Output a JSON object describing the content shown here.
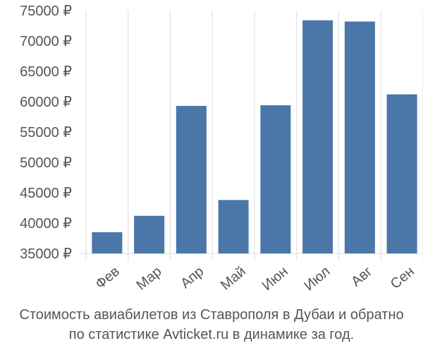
{
  "caption": {
    "line1": "Стоимость авиабилетов из Ставрополя в Дубаи и обратно",
    "line2": "по статистике Avticket.ru в динамике за год."
  },
  "chart_data": {
    "type": "bar",
    "categories": [
      "Фев",
      "Мар",
      "Апр",
      "Май",
      "Июн",
      "Июл",
      "Авг",
      "Сен"
    ],
    "values": [
      38500,
      41200,
      59300,
      43800,
      59400,
      73400,
      73200,
      61200
    ],
    "ylim": [
      35000,
      75000
    ],
    "yticks": [
      35000,
      40000,
      45000,
      50000,
      55000,
      60000,
      65000,
      70000,
      75000
    ],
    "ytick_labels": [
      "35000 ₽",
      "40000 ₽",
      "45000 ₽",
      "50000 ₽",
      "55000 ₽",
      "60000 ₽",
      "65000 ₽",
      "70000 ₽",
      "75000 ₽"
    ],
    "grid": "vertical",
    "bar_color": "#4a76a8",
    "grid_color": "#dddddd"
  }
}
